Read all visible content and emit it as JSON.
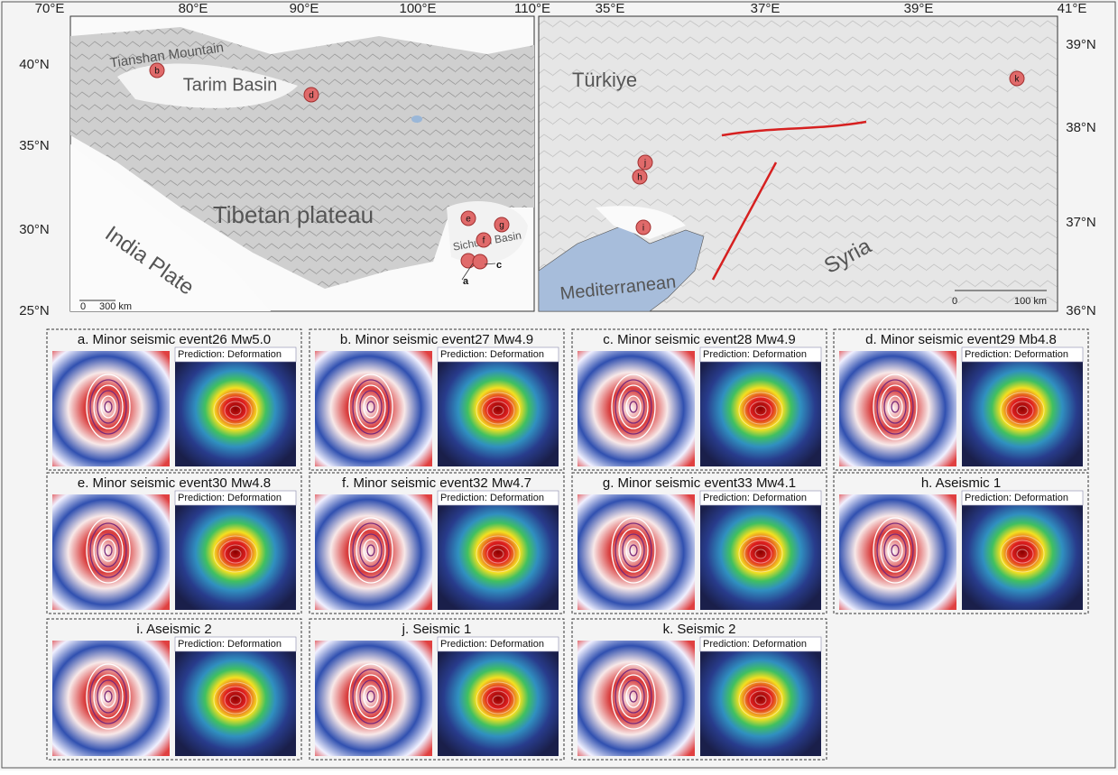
{
  "maps": [
    {
      "lon_labels": [
        "70°E",
        "80°E",
        "90°E",
        "100°E",
        "110°E"
      ],
      "lat_labels": [
        "40°N",
        "35°N",
        "30°N",
        "25°N"
      ],
      "places": [
        "Tianshan Mountain",
        "Tarim Basin",
        "Tibetan plateau",
        "India Plate",
        "Sichuan Basin"
      ],
      "scale_bar": [
        "0",
        "300 km"
      ],
      "markers": [
        "b",
        "d",
        "e",
        "g",
        "f",
        "a",
        "c"
      ]
    },
    {
      "lon_labels": [
        "35°E",
        "37°E",
        "39°E",
        "41°E"
      ],
      "lat_labels": [
        "39°N",
        "38°N",
        "37°N",
        "36°N"
      ],
      "places": [
        "Türkiye",
        "Mediterranean",
        "Syria"
      ],
      "scale_bar": [
        "0",
        "100 km"
      ],
      "markers": [
        "k",
        "j",
        "h",
        "i"
      ]
    }
  ],
  "panels": [
    {
      "title": "a. Minor seismic event26 Mw5.0",
      "prediction": "Prediction: Deformation"
    },
    {
      "title": "b. Minor seismic event27 Mw4.9",
      "prediction": "Prediction: Deformation"
    },
    {
      "title": "c. Minor seismic event28 Mw4.9",
      "prediction": "Prediction: Deformation"
    },
    {
      "title": "d. Minor seismic event29 Mb4.8",
      "prediction": "Prediction: Deformation"
    },
    {
      "title": "e. Minor seismic event30 Mw4.8",
      "prediction": "Prediction: Deformation"
    },
    {
      "title": "f. Minor seismic event32 Mw4.7",
      "prediction": "Prediction: Deformation"
    },
    {
      "title": "g. Minor seismic event33 Mw4.1",
      "prediction": "Prediction: Deformation"
    },
    {
      "title": "h. Aseismic 1",
      "prediction": "Prediction: Deformation"
    },
    {
      "title": "i. Aseismic 2",
      "prediction": "Prediction: Deformation"
    },
    {
      "title": "j. Seismic 1",
      "prediction": "Prediction: Deformation"
    },
    {
      "title": "k. Seismic 2",
      "prediction": "Prediction: Deformation"
    }
  ]
}
